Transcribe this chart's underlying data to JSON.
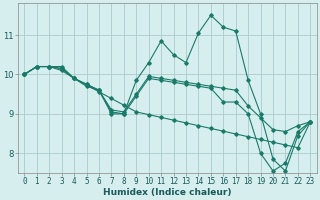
{
  "xlabel": "Humidex (Indice chaleur)",
  "background_color": "#d6eeee",
  "grid_color": "#aacccc",
  "line_color": "#1a7a6a",
  "x_values": [
    0,
    1,
    2,
    3,
    4,
    5,
    6,
    7,
    8,
    9,
    10,
    11,
    12,
    13,
    14,
    15,
    16,
    17,
    18,
    19,
    20,
    21,
    22,
    23
  ],
  "series": [
    [
      10.0,
      10.2,
      10.2,
      10.2,
      9.9,
      9.7,
      9.6,
      9.0,
      9.0,
      9.85,
      10.3,
      10.85,
      10.5,
      10.3,
      11.05,
      11.5,
      11.2,
      11.1,
      9.85,
      9.0,
      7.85,
      7.55,
      8.45,
      8.8
    ],
    [
      10.0,
      10.2,
      10.2,
      10.15,
      9.9,
      9.75,
      9.6,
      9.1,
      9.05,
      9.5,
      9.95,
      9.9,
      9.85,
      9.8,
      9.75,
      9.7,
      9.65,
      9.6,
      9.2,
      8.9,
      8.6,
      8.55,
      8.7,
      8.8
    ],
    [
      10.0,
      10.2,
      10.2,
      10.15,
      9.9,
      9.75,
      9.6,
      9.05,
      9.0,
      9.45,
      9.9,
      9.85,
      9.8,
      9.75,
      9.7,
      9.65,
      9.3,
      9.3,
      9.0,
      8.0,
      7.55,
      7.75,
      8.55,
      8.8
    ],
    [
      10.0,
      10.2,
      10.2,
      10.1,
      9.9,
      9.73,
      9.56,
      9.39,
      9.22,
      9.05,
      8.98,
      8.91,
      8.84,
      8.77,
      8.7,
      8.63,
      8.56,
      8.49,
      8.42,
      8.35,
      8.28,
      8.21,
      8.14,
      8.8
    ]
  ],
  "ylim": [
    7.5,
    11.8
  ],
  "yticks": [
    8,
    9,
    10,
    11
  ],
  "xticks": [
    0,
    1,
    2,
    3,
    4,
    5,
    6,
    7,
    8,
    9,
    10,
    11,
    12,
    13,
    14,
    15,
    16,
    17,
    18,
    19,
    20,
    21,
    22,
    23
  ],
  "marker": "D",
  "markersize": 1.8,
  "linewidth": 0.8,
  "tick_fontsize": 5.5,
  "xlabel_fontsize": 6.5,
  "xlabel_bold": true
}
